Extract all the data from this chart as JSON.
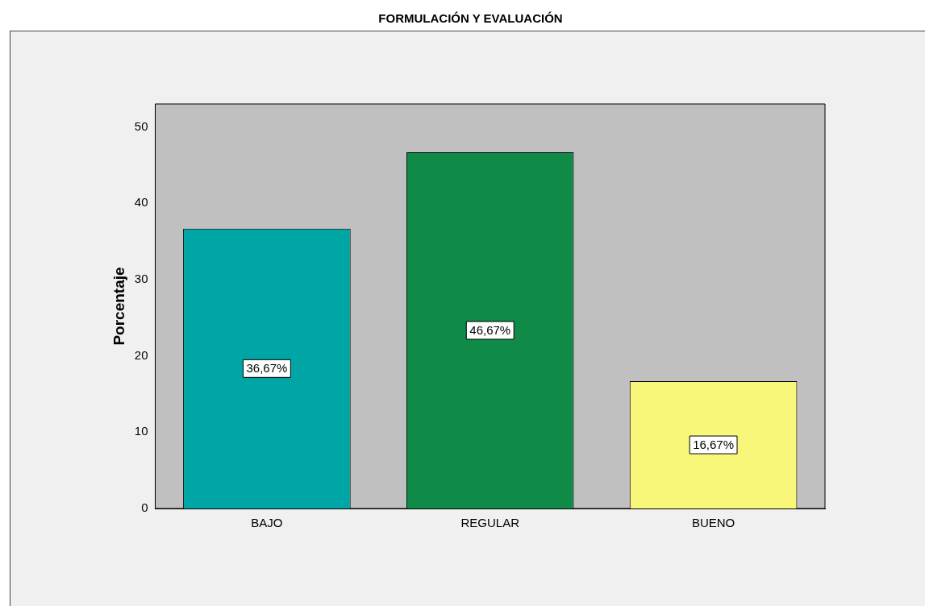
{
  "chart_data": {
    "type": "bar",
    "title": "FORMULACIÓN Y EVALUACIÓN",
    "ylabel": "Porcentaje",
    "categories": [
      "BAJO",
      "REGULAR",
      "BUENO"
    ],
    "values": [
      36.67,
      46.67,
      16.67
    ],
    "colors": [
      "#00a6a6",
      "#0f8a47",
      "#f8f77a"
    ],
    "value_labels": [
      "36,67%",
      "46,67%",
      "16,67%"
    ],
    "ylim": [
      0,
      53
    ],
    "yticks": [
      0,
      10,
      20,
      30,
      40,
      50
    ]
  }
}
